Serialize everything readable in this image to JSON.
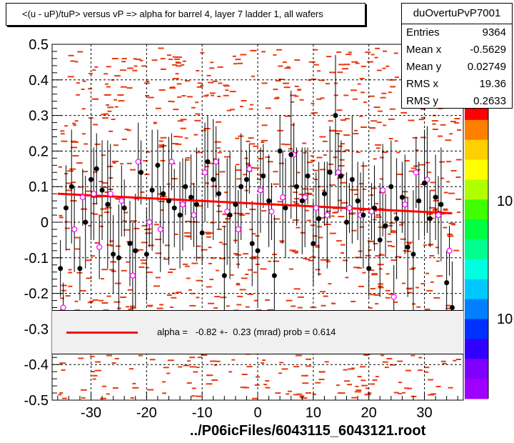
{
  "title": "<(u - uP)/tuP> versus  vP => alpha for barrel 4, layer 7 ladder 1, all wafers",
  "stats": {
    "name": "duOvertuPvP7001",
    "rows": [
      {
        "label": "Entries",
        "value": "9364"
      },
      {
        "label": "Mean x",
        "value": "-0.5629"
      },
      {
        "label": "Mean y",
        "value": "0.02749"
      },
      {
        "label": "RMS x",
        "value": "19.36"
      },
      {
        "label": "RMS y",
        "value": "0.2633"
      }
    ]
  },
  "fit": {
    "text": "alpha =   -0.82 +-  0.23 (mrad) prob = 0.614",
    "line_color": "#ff0000",
    "line_start": [
      -36,
      0.08
    ],
    "line_end": [
      35,
      0.025
    ]
  },
  "footer": "../P06icFiles/6043115_6043121.root",
  "colors": {
    "hist": "#e83a10",
    "fit": "#ff0000",
    "filled_marker": "#000000",
    "open_marker": "#ff00ff"
  },
  "palette_labels": [
    "10",
    "10"
  ],
  "chart_data": {
    "type": "scatter",
    "xlim": [
      -37,
      37
    ],
    "ylim": [
      -0.5,
      0.5
    ],
    "xticks": [
      -30,
      -20,
      -10,
      0,
      10,
      20,
      30
    ],
    "yticks": [
      -0.5,
      -0.4,
      -0.3,
      -0.2,
      -0.1,
      0,
      0.1,
      0.2,
      0.3,
      0.4,
      0.5
    ],
    "grid": true,
    "series": [
      {
        "marker": "filled-circle",
        "x": [
          -35.5,
          -34.5,
          -33.5,
          -32,
          -31,
          -30,
          -29,
          -28,
          -27,
          -26,
          -25,
          -24,
          -23,
          -22,
          -21,
          -20,
          -19,
          -18,
          -17,
          -16,
          -15,
          -14,
          -13,
          -12,
          -11,
          -10,
          -9,
          -8,
          -7,
          -6,
          -5,
          -4,
          -3,
          -2,
          -1,
          0,
          1,
          2,
          3,
          4,
          5,
          6,
          7,
          8,
          9,
          10,
          11,
          12,
          13,
          14,
          15,
          16,
          17,
          18,
          19,
          20,
          21,
          22,
          23,
          24,
          25,
          26,
          27,
          28,
          29,
          30,
          31,
          32,
          33,
          34,
          35
        ],
        "y": [
          -0.13,
          0.04,
          0.1,
          -0.13,
          0.0,
          0.12,
          0.15,
          0.09,
          0.05,
          -0.09,
          -0.1,
          0.04,
          -0.06,
          -0.08,
          0.14,
          -0.09,
          0.09,
          0.16,
          0.08,
          0.06,
          0.04,
          0.02,
          0.1,
          0.07,
          0.05,
          -0.03,
          0.17,
          0.12,
          0.08,
          -0.15,
          0.02,
          0.05,
          0.1,
          0.12,
          -0.06,
          -0.08,
          0.13,
          0.06,
          -0.15,
          0.2,
          0.04,
          0.19,
          0.1,
          0.06,
          0.13,
          -0.06,
          0.01,
          0.08,
          0.14,
          0.3,
          0.13,
          0.0,
          0.12,
          0.06,
          0.02,
          -0.13,
          0.04,
          -0.05,
          -0.01,
          0.1,
          0.01,
          0.07,
          -0.07,
          -0.09,
          0.06,
          0.11,
          0.01,
          0.07,
          0.05,
          -0.17,
          -0.24
        ]
      },
      {
        "marker": "open-circle",
        "x": [
          -35,
          -33,
          -31.5,
          -29.5,
          -28.5,
          -26.5,
          -24.5,
          -22.5,
          -21.5,
          -19.5,
          -17.5,
          -15.5,
          -13.5,
          -11.5,
          -9.5,
          -7.5,
          -5.5,
          -3.5,
          -1.5,
          0.5,
          2.5,
          4.5,
          6.5,
          8.5,
          10.5,
          12.5,
          14.5,
          16.5,
          18.5,
          20.5,
          22.5,
          24.5,
          26.5,
          28.5,
          30.5,
          32.5,
          34.5
        ],
        "y": [
          -0.24,
          -0.02,
          0.07,
          0.08,
          -0.07,
          0.08,
          0.06,
          -0.15,
          0.17,
          0.0,
          -0.02,
          0.17,
          0.05,
          0.02,
          0.14,
          0.17,
          0.03,
          -0.02,
          0.15,
          0.09,
          0.03,
          0.07,
          0.19,
          0.07,
          0.04,
          0.02,
          0.14,
          0.04,
          0.02,
          0.03,
          0.09,
          -0.21,
          0.05,
          0.14,
          0.12,
          0.02,
          -0.08
        ]
      }
    ]
  }
}
